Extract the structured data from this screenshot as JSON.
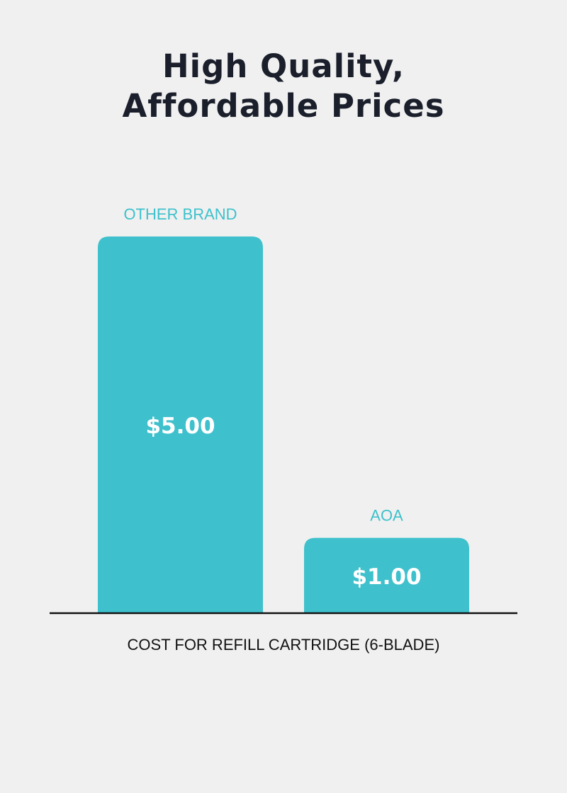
{
  "chart_data": {
    "type": "bar",
    "title_lines": [
      "High Quality,",
      "Affordable Prices"
    ],
    "categories": [
      "OTHER BRAND",
      "AOA"
    ],
    "values": [
      5.0,
      1.0
    ],
    "data_labels": [
      "$5.00",
      "$1.00"
    ],
    "xlabel": "COST FOR REFILL CARTRIDGE (6-BLADE)",
    "ylabel": "",
    "ylim": [
      0,
      5
    ],
    "grid": false,
    "colors": {
      "bar": "#3ec1cc",
      "category_label": "#3ec1cc",
      "data_label": "#ffffff",
      "title": "#1a1f2b",
      "axis": "#111111",
      "background": "#f0f0f0"
    }
  }
}
